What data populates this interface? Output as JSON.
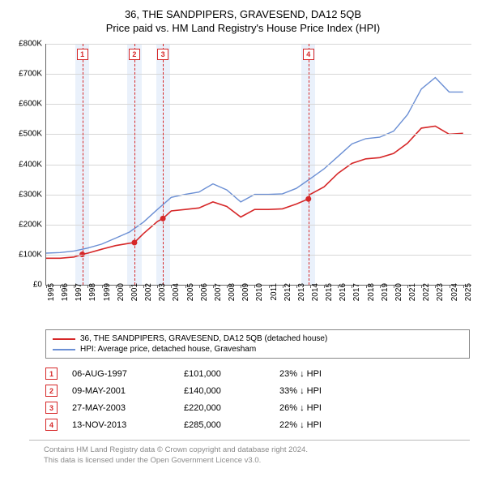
{
  "title": {
    "line1": "36, THE SANDPIPERS, GRAVESEND, DA12 5QB",
    "line2": "Price paid vs. HM Land Registry's House Price Index (HPI)",
    "fontsize": 13
  },
  "chart": {
    "type": "line",
    "background_color": "#ffffff",
    "grid_color": "#d7d7d7",
    "axis_color": "#666666",
    "band_color": "#eaf1fb",
    "ylim": [
      0,
      800
    ],
    "yticks": [
      0,
      100,
      200,
      300,
      400,
      500,
      600,
      700,
      800
    ],
    "ytick_labels": [
      "£0",
      "£100K",
      "£200K",
      "£300K",
      "£400K",
      "£500K",
      "£600K",
      "£700K",
      "£800K"
    ],
    "xlim": [
      1995,
      2025.6
    ],
    "xticks": [
      1995,
      1996,
      1997,
      1998,
      1999,
      2000,
      2001,
      2002,
      2003,
      2004,
      2005,
      2006,
      2007,
      2008,
      2009,
      2010,
      2011,
      2012,
      2013,
      2014,
      2015,
      2016,
      2017,
      2018,
      2019,
      2020,
      2021,
      2022,
      2023,
      2024,
      2025
    ],
    "label_fontsize": 10,
    "series": [
      {
        "name": "property",
        "label": "36, THE SANDPIPERS, GRAVESEND, DA12 5QB (detached house)",
        "color": "#d62728",
        "line_width": 1.6,
        "points": [
          [
            1995,
            88
          ],
          [
            1996,
            88
          ],
          [
            1997,
            92
          ],
          [
            1997.6,
            101
          ],
          [
            1998,
            105
          ],
          [
            1999,
            118
          ],
          [
            2000,
            130
          ],
          [
            2001,
            138
          ],
          [
            2001.35,
            140
          ],
          [
            2002,
            170
          ],
          [
            2003,
            210
          ],
          [
            2003.4,
            220
          ],
          [
            2004,
            245
          ],
          [
            2005,
            250
          ],
          [
            2006,
            255
          ],
          [
            2007,
            275
          ],
          [
            2008,
            260
          ],
          [
            2009,
            225
          ],
          [
            2010,
            250
          ],
          [
            2011,
            250
          ],
          [
            2012,
            252
          ],
          [
            2013,
            268
          ],
          [
            2013.87,
            285
          ],
          [
            2014,
            300
          ],
          [
            2015,
            325
          ],
          [
            2016,
            370
          ],
          [
            2017,
            403
          ],
          [
            2018,
            418
          ],
          [
            2019,
            422
          ],
          [
            2020,
            436
          ],
          [
            2021,
            470
          ],
          [
            2022,
            520
          ],
          [
            2023,
            527
          ],
          [
            2024,
            500
          ],
          [
            2025,
            503
          ]
        ]
      },
      {
        "name": "hpi",
        "label": "HPI: Average price, detached house, Gravesham",
        "color": "#6b8fd4",
        "line_width": 1.4,
        "points": [
          [
            1995,
            105
          ],
          [
            1996,
            107
          ],
          [
            1997,
            112
          ],
          [
            1998,
            122
          ],
          [
            1999,
            135
          ],
          [
            2000,
            155
          ],
          [
            2001,
            175
          ],
          [
            2002,
            208
          ],
          [
            2003,
            250
          ],
          [
            2004,
            290
          ],
          [
            2005,
            300
          ],
          [
            2006,
            308
          ],
          [
            2007,
            335
          ],
          [
            2008,
            315
          ],
          [
            2009,
            275
          ],
          [
            2010,
            300
          ],
          [
            2011,
            300
          ],
          [
            2012,
            302
          ],
          [
            2013,
            320
          ],
          [
            2014,
            352
          ],
          [
            2015,
            385
          ],
          [
            2016,
            426
          ],
          [
            2017,
            468
          ],
          [
            2018,
            485
          ],
          [
            2019,
            490
          ],
          [
            2020,
            510
          ],
          [
            2021,
            565
          ],
          [
            2022,
            650
          ],
          [
            2023,
            688
          ],
          [
            2024,
            640
          ],
          [
            2025,
            640
          ]
        ]
      }
    ],
    "sale_markers": [
      {
        "n": "1",
        "year": 1997.6,
        "value": 101
      },
      {
        "n": "2",
        "year": 2001.35,
        "value": 140
      },
      {
        "n": "3",
        "year": 2003.4,
        "value": 220
      },
      {
        "n": "4",
        "year": 2013.87,
        "value": 285
      }
    ],
    "marker_color": "#d62728",
    "marker_radius": 3.5
  },
  "legend": {
    "items": [
      {
        "color": "#d62728",
        "label": "36, THE SANDPIPERS, GRAVESEND, DA12 5QB (detached house)"
      },
      {
        "color": "#6b8fd4",
        "label": "HPI: Average price, detached house, Gravesham"
      }
    ]
  },
  "sales_table": {
    "rows": [
      {
        "n": "1",
        "date": "06-AUG-1997",
        "price": "£101,000",
        "pct": "23% ↓ HPI"
      },
      {
        "n": "2",
        "date": "09-MAY-2001",
        "price": "£140,000",
        "pct": "33% ↓ HPI"
      },
      {
        "n": "3",
        "date": "27-MAY-2003",
        "price": "£220,000",
        "pct": "26% ↓ HPI"
      },
      {
        "n": "4",
        "date": "13-NOV-2013",
        "price": "£285,000",
        "pct": "22% ↓ HPI"
      }
    ]
  },
  "footer": {
    "line1": "Contains HM Land Registry data © Crown copyright and database right 2024.",
    "line2": "This data is licensed under the Open Government Licence v3.0."
  }
}
